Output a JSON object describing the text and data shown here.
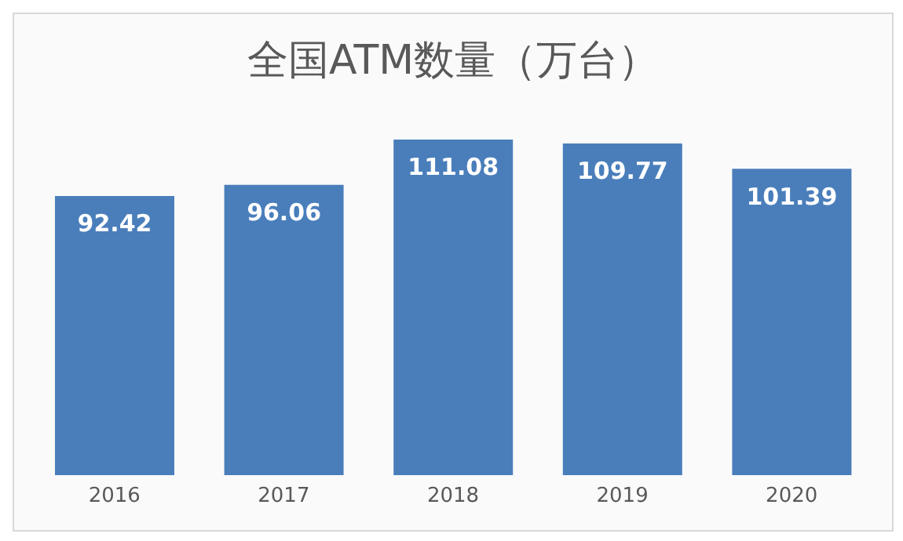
{
  "chart_data": {
    "type": "bar",
    "title": "全国ATM数量（万台）",
    "categories": [
      "2016",
      "2017",
      "2018",
      "2019",
      "2020"
    ],
    "values": [
      92.42,
      96.06,
      111.08,
      109.77,
      101.39
    ],
    "color": "#4a7ebb",
    "data_labels": true,
    "grid": false,
    "legend": false
  }
}
